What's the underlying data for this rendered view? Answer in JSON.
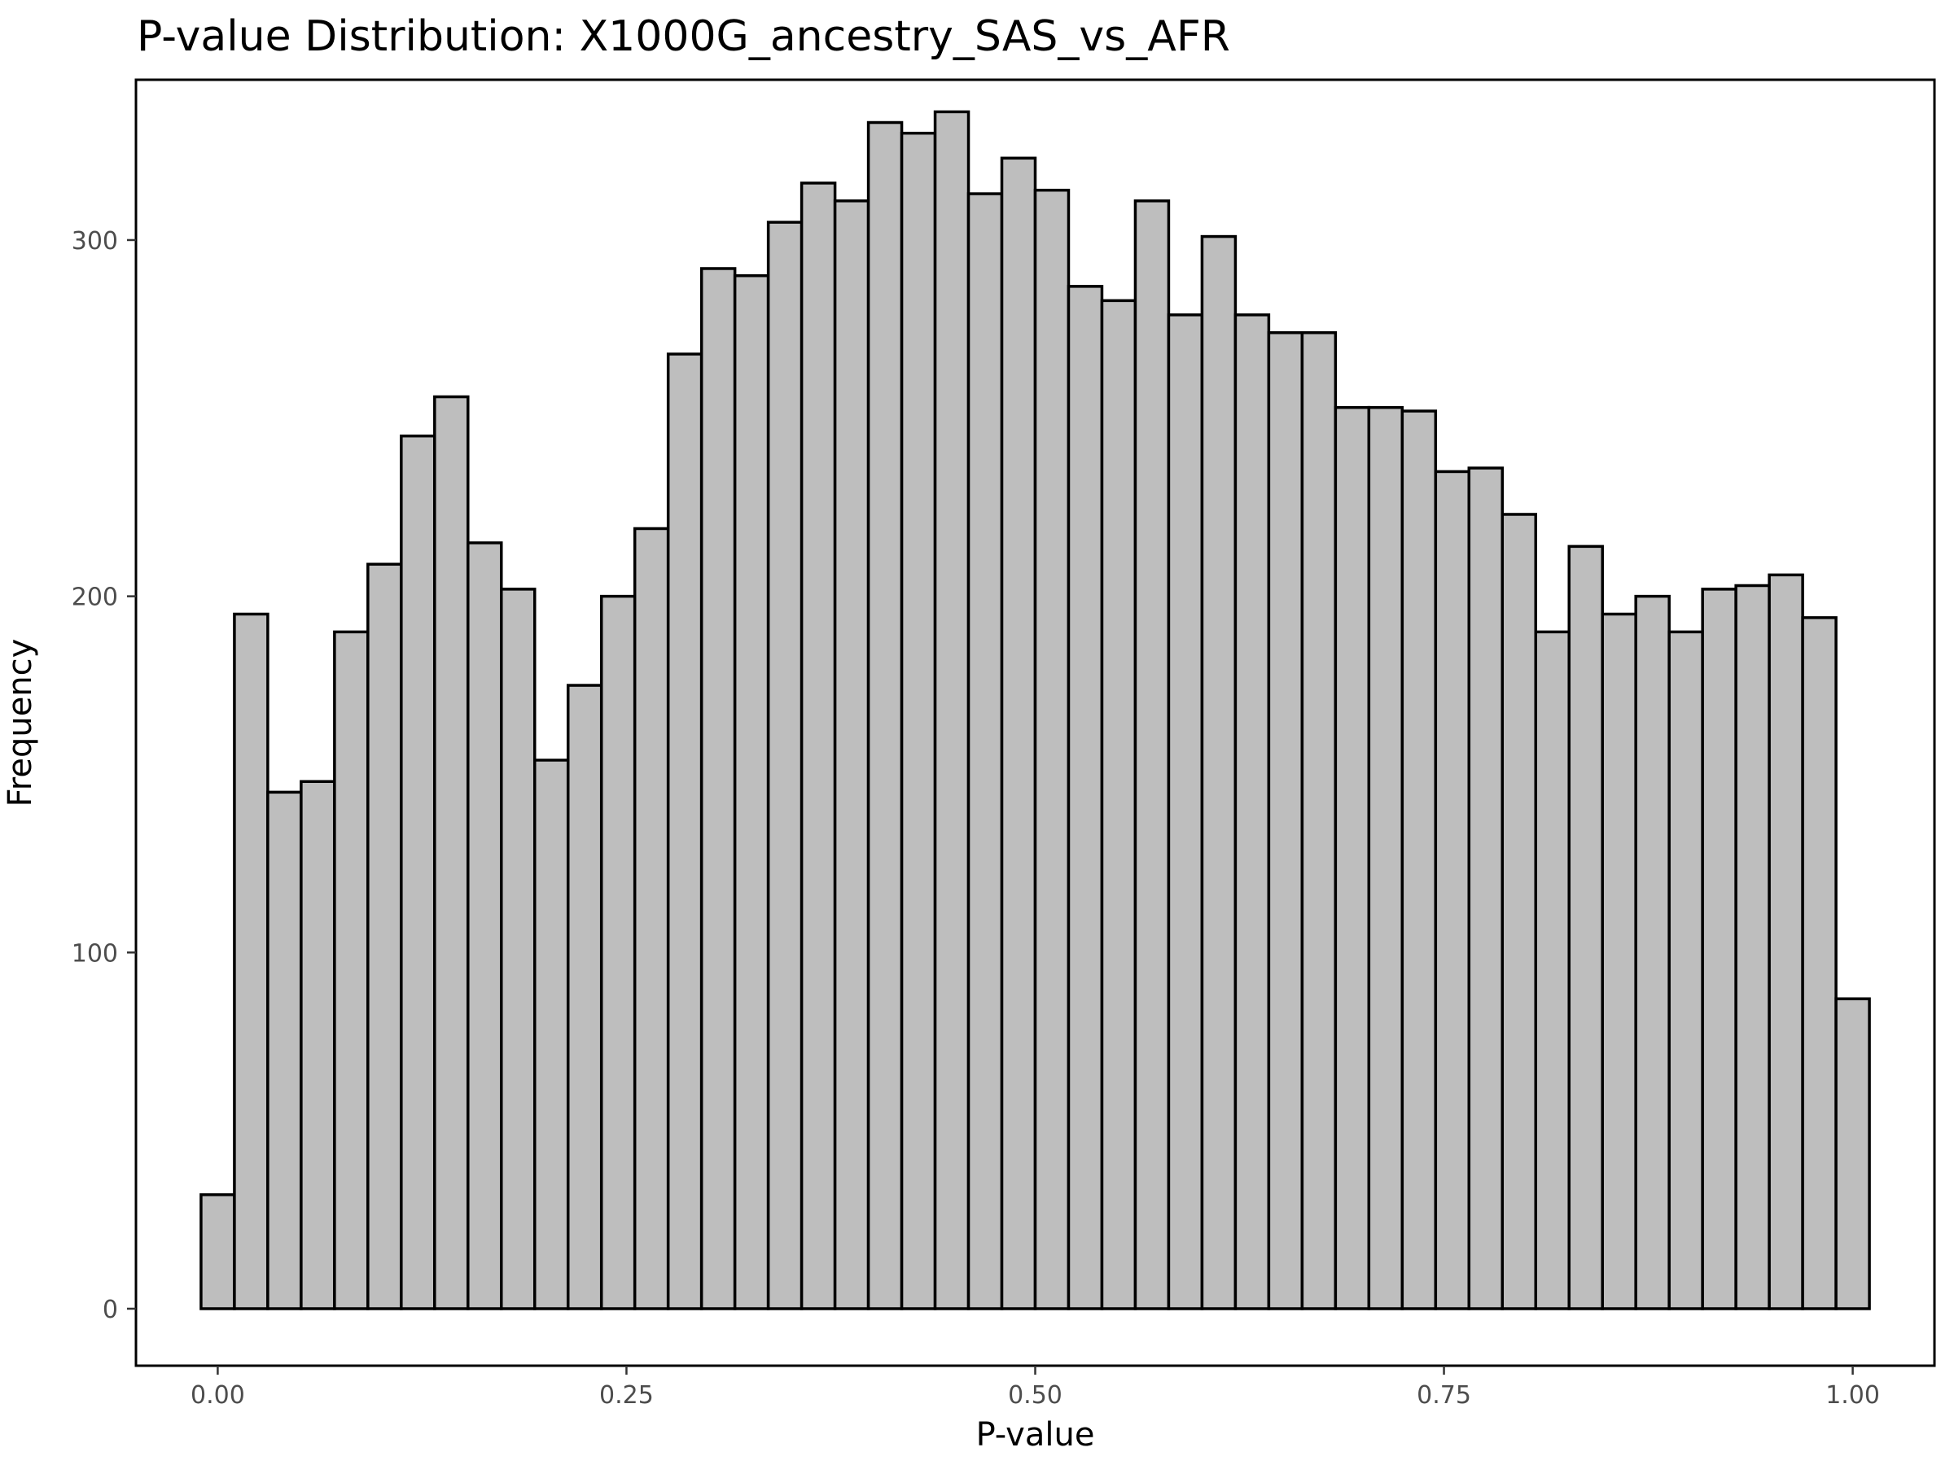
{
  "chart_data": {
    "type": "bar",
    "title": "P-value Distribution: X1000G_ancestry_SAS_vs_AFR",
    "xlabel": "P-value",
    "ylabel": "Frequency",
    "xlim": [
      -0.05,
      1.05
    ],
    "ylim": [
      -16,
      345
    ],
    "x_ticks": [
      0,
      0.25,
      0.5,
      0.75,
      1
    ],
    "x_tick_labels": [
      "0.00",
      "0.25",
      "0.50",
      "0.75",
      "1.00"
    ],
    "y_ticks": [
      0,
      100,
      200,
      300
    ],
    "y_tick_labels": [
      "0",
      "100",
      "200",
      "300"
    ],
    "bin_width": 0.02040816,
    "bin_start": -0.01020408,
    "values": [
      32,
      195,
      145,
      148,
      190,
      209,
      245,
      256,
      215,
      202,
      154,
      175,
      200,
      219,
      268,
      292,
      290,
      305,
      316,
      311,
      333,
      330,
      336,
      313,
      323,
      314,
      287,
      283,
      311,
      279,
      301,
      279,
      274,
      274,
      253,
      253,
      252,
      235,
      236,
      223,
      190,
      214,
      195,
      200,
      190,
      202,
      203,
      206,
      194,
      87
    ],
    "grid": false,
    "legend": "none",
    "colors": {
      "fill": "#bebebe",
      "stroke": "#000000"
    }
  }
}
